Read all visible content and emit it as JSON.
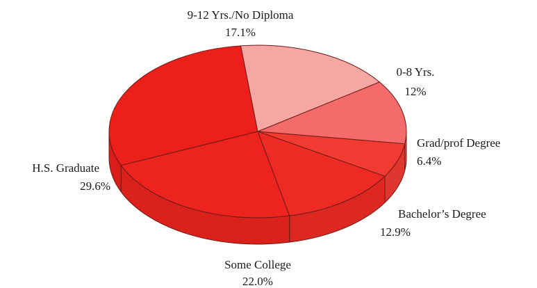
{
  "chart_data": {
    "type": "pie",
    "style": "3d",
    "title": "",
    "slices": [
      {
        "label": "0-8 Yrs.",
        "value_label": "12%",
        "value": 12.0,
        "color": "#f56a6a"
      },
      {
        "label": "Grad/prof Degree",
        "value_label": "6.4%",
        "value": 6.4,
        "color": "#f03a32"
      },
      {
        "label": "Bachelor’s Degree",
        "value_label": "12.9%",
        "value": 12.9,
        "color": "#ee2a24"
      },
      {
        "label": "Some College",
        "value_label": "22.0%",
        "value": 22.0,
        "color": "#ec231e"
      },
      {
        "label": "H.S. Graduate",
        "value_label": "29.6%",
        "value": 29.6,
        "color": "#ec1f1b"
      },
      {
        "label": "9-12 Yrs./No Diploma",
        "value_label": "17.1%",
        "value": 17.1,
        "color": "#f6a6a3"
      }
    ]
  }
}
